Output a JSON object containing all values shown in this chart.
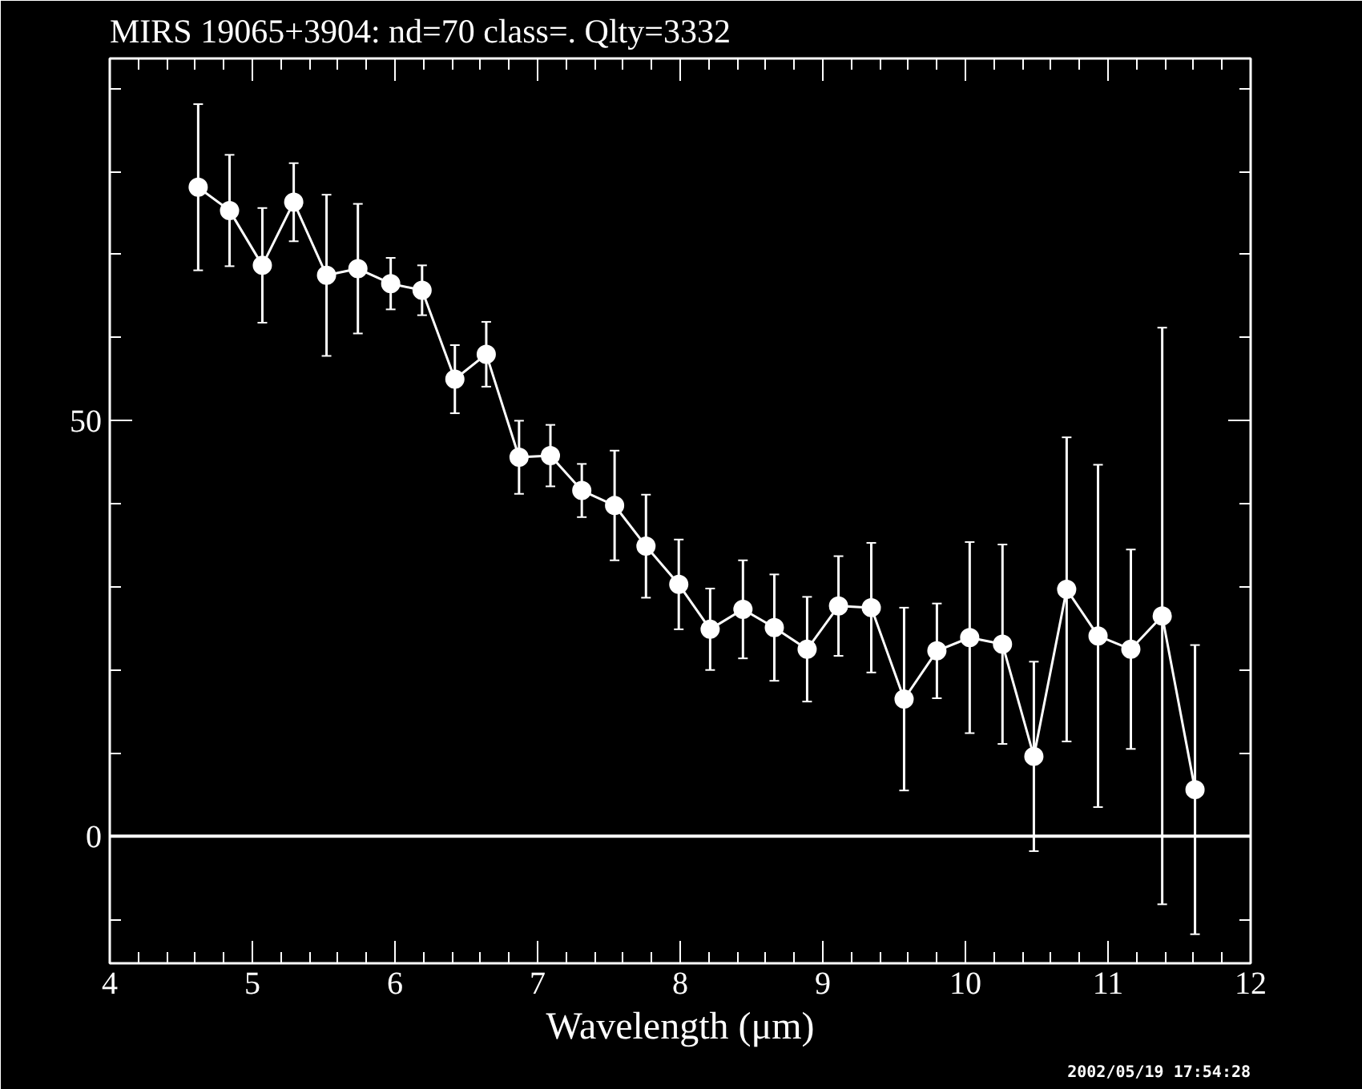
{
  "chart_data": {
    "type": "line",
    "title": "MIRS 19065+3904:    nd=70   class=.   Qlty=3332",
    "xlabel": "Wavelength (μm)",
    "annotations": [
      "2002/05/19 17:54:28"
    ],
    "x": [
      4.62,
      4.84,
      5.07,
      5.29,
      5.52,
      5.74,
      5.97,
      6.19,
      6.42,
      6.64,
      6.87,
      7.09,
      7.31,
      7.54,
      7.76,
      7.99,
      8.21,
      8.44,
      8.66,
      8.89,
      9.11,
      9.34,
      9.57,
      9.8,
      10.03,
      10.26,
      10.48,
      10.71,
      10.93,
      11.16,
      11.38,
      11.61
    ],
    "values": [
      78.1,
      75.3,
      68.7,
      76.3,
      67.5,
      68.3,
      66.5,
      65.7,
      55.0,
      58.0,
      45.6,
      45.8,
      41.6,
      39.8,
      34.9,
      30.3,
      24.9,
      27.3,
      25.1,
      22.5,
      27.7,
      27.5,
      16.5,
      22.3,
      23.9,
      23.1,
      9.6,
      29.7,
      24.1,
      22.5,
      26.5,
      5.6
    ],
    "errors": [
      10,
      6.7,
      6.9,
      4.7,
      9.7,
      7.8,
      3.1,
      3,
      4.1,
      3.9,
      4.4,
      3.7,
      3.2,
      6.6,
      6.2,
      5.4,
      4.9,
      5.9,
      6.4,
      6.3,
      6,
      7.8,
      11,
      5.7,
      11.5,
      12,
      11.4,
      18.3,
      20.6,
      12,
      34.7,
      17.4
    ],
    "color": "#ffffff",
    "xlim": [
      4,
      12
    ],
    "ylim": [
      -15.3,
      93.6
    ],
    "xticks": [
      4,
      {
        "value": 4.2,
        "label": null
      },
      {
        "value": 4.4,
        "label": null
      },
      {
        "value": 4.6,
        "label": null
      },
      {
        "value": 4.8,
        "label": null
      },
      5,
      {
        "value": 5.2,
        "label": null
      },
      {
        "value": 5.4,
        "label": null
      },
      {
        "value": 5.6,
        "label": null
      },
      {
        "value": 5.8,
        "label": null
      },
      6,
      {
        "value": 6.2,
        "label": null
      },
      {
        "value": 6.4,
        "label": null
      },
      {
        "value": 6.6,
        "label": null
      },
      {
        "value": 6.8,
        "label": null
      },
      7,
      {
        "value": 7.2,
        "label": null
      },
      {
        "value": 7.4,
        "label": null
      },
      {
        "value": 7.6,
        "label": null
      },
      {
        "value": 7.8,
        "label": null
      },
      8,
      {
        "value": 8.2,
        "label": null
      },
      {
        "value": 8.4,
        "label": null
      },
      {
        "value": 8.6,
        "label": null
      },
      {
        "value": 8.8,
        "label": null
      },
      9,
      {
        "value": 9.2,
        "label": null
      },
      {
        "value": 9.4,
        "label": null
      },
      {
        "value": 9.6,
        "label": null
      },
      {
        "value": 9.8,
        "label": null
      },
      10,
      {
        "value": 10.2,
        "label": null
      },
      {
        "value": 10.4,
        "label": null
      },
      {
        "value": 10.6,
        "label": null
      },
      {
        "value": 10.8,
        "label": null
      },
      11,
      {
        "value": 11.2,
        "label": null
      },
      {
        "value": 11.4,
        "label": null
      },
      {
        "value": 11.6,
        "label": null
      },
      {
        "value": 11.8,
        "label": null
      },
      12
    ],
    "yticks": [
      {
        "value": -10,
        "label": null
      },
      0,
      {
        "value": 10,
        "label": null
      },
      {
        "value": 20,
        "label": null
      },
      {
        "value": 30,
        "label": null
      },
      {
        "value": 40,
        "label": null
      },
      50,
      {
        "value": 60,
        "label": null
      },
      {
        "value": 70,
        "label": null
      },
      {
        "value": 80,
        "label": null
      },
      {
        "value": 90,
        "label": null
      }
    ],
    "ref_lines": [
      {
        "axis": "y",
        "value": 0,
        "label": null,
        "color": "#ffffff"
      }
    ],
    "grid": false,
    "marker": "circle",
    "line_style": "solid"
  }
}
